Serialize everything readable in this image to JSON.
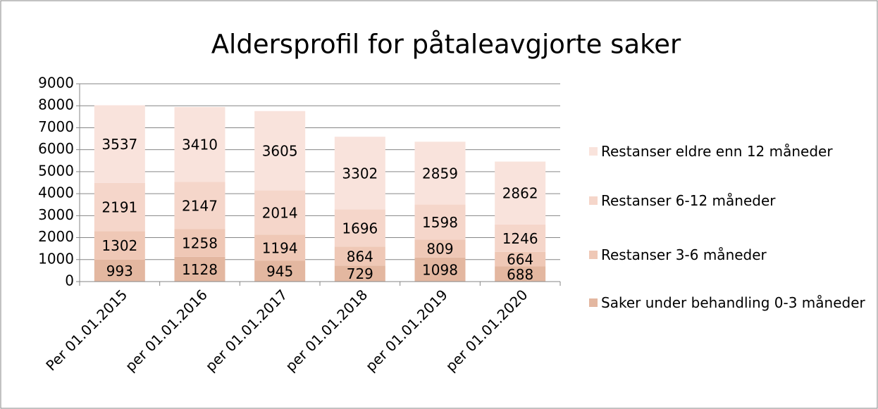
{
  "chart_data": {
    "type": "bar",
    "stacked": true,
    "title": "Aldersprofil for påtaleavgjorte saker",
    "categories": [
      "Per 01.01.2015",
      "per 01.01.2016",
      "per 01.01.2017",
      "per 01.01.2018",
      "per 01.01.2019",
      "per 01.01.2020"
    ],
    "series": [
      {
        "name": "Saker under behandling 0-3 måneder",
        "color": "#e3b7a0",
        "values": [
          993,
          1128,
          945,
          729,
          1098,
          688
        ]
      },
      {
        "name": "Restanser 3-6 måneder",
        "color": "#efc8b6",
        "values": [
          1302,
          1258,
          1194,
          864,
          809,
          664
        ]
      },
      {
        "name": "Restanser 6-12 måneder",
        "color": "#f5d6ca",
        "values": [
          2191,
          2147,
          2014,
          1696,
          1598,
          1246
        ]
      },
      {
        "name": "Restanser eldre enn 12 måneder",
        "color": "#f9e3dc",
        "values": [
          3537,
          3410,
          3605,
          3302,
          2859,
          2862
        ]
      }
    ],
    "ylim": [
      0,
      9000
    ],
    "yticks": [
      0,
      1000,
      2000,
      3000,
      4000,
      5000,
      6000,
      7000,
      8000,
      9000
    ],
    "grid": true,
    "legend": "right"
  }
}
